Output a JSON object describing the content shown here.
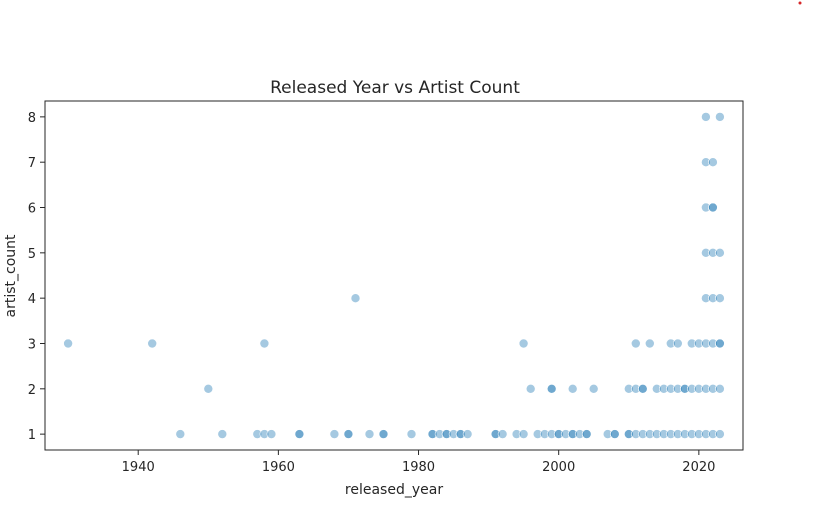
{
  "chart_data": {
    "type": "scatter",
    "title": "Released Year vs Artist Count",
    "xlabel": "released_year",
    "ylabel": "artist_count",
    "xlim": [
      1926.7,
      2026.3
    ],
    "ylim": [
      0.65,
      8.35
    ],
    "xticks": [
      1940,
      1960,
      1980,
      2000,
      2020
    ],
    "yticks": [
      1,
      2,
      3,
      4,
      5,
      6,
      7,
      8
    ],
    "grid": false,
    "legend": "none",
    "point_color": "#1f77b4",
    "point_alpha": 0.4,
    "x": [
      1930,
      1942,
      1946,
      1950,
      1952,
      1957,
      1958,
      1958,
      1959,
      1963,
      1963,
      1968,
      1970,
      1970,
      1971,
      1973,
      1975,
      1975,
      1979,
      1982,
      1982,
      1983,
      1984,
      1984,
      1985,
      1986,
      1986,
      1987,
      1991,
      1991,
      1992,
      1994,
      1995,
      1995,
      1996,
      1997,
      1998,
      1999,
      1999,
      1999,
      2000,
      2000,
      2001,
      2002,
      2002,
      2002,
      2003,
      2004,
      2004,
      2005,
      2007,
      2008,
      2008,
      2010,
      2010,
      2010,
      2011,
      2011,
      2011,
      2012,
      2012,
      2012,
      2013,
      2013,
      2014,
      2014,
      2015,
      2015,
      2016,
      2016,
      2016,
      2017,
      2017,
      2017,
      2018,
      2018,
      2018,
      2019,
      2019,
      2019,
      2020,
      2020,
      2020,
      2021,
      2021,
      2021,
      2021,
      2021,
      2021,
      2021,
      2021,
      2022,
      2022,
      2022,
      2022,
      2022,
      2022,
      2022,
      2022,
      2023,
      2023,
      2023,
      2023,
      2023,
      2023,
      2023
    ],
    "y": [
      3,
      3,
      1,
      2,
      1,
      1,
      1,
      3,
      1,
      1,
      1,
      1,
      1,
      1,
      4,
      1,
      1,
      1,
      1,
      1,
      1,
      1,
      1,
      1,
      1,
      1,
      1,
      1,
      1,
      1,
      1,
      1,
      1,
      3,
      2,
      1,
      1,
      1,
      2,
      2,
      1,
      1,
      1,
      1,
      1,
      2,
      1,
      1,
      1,
      2,
      1,
      1,
      1,
      1,
      1,
      2,
      1,
      2,
      3,
      1,
      2,
      2,
      1,
      3,
      1,
      2,
      1,
      2,
      1,
      2,
      3,
      1,
      2,
      3,
      1,
      2,
      2,
      1,
      2,
      3,
      1,
      2,
      3,
      1,
      2,
      3,
      4,
      5,
      6,
      7,
      8,
      1,
      2,
      3,
      4,
      5,
      6,
      6,
      7,
      1,
      2,
      3,
      3,
      4,
      5,
      8
    ]
  }
}
